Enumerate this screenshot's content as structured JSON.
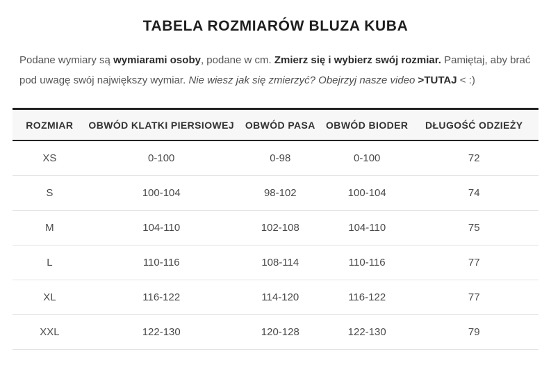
{
  "page": {
    "title": "TABELA ROZMIARÓW BLUZA KUBA",
    "intro": {
      "seg1": "Podane wymiary są ",
      "seg2": "wymiarami osoby",
      "seg3": ", podane w cm. ",
      "seg4": "Zmierz się i wybierz swój rozmiar.",
      "seg5": " Pamiętaj, aby brać pod uwagę swój największy wymiar. ",
      "seg6": "Nie wiesz jak się zmierzyć? Obejrzyj nasze video",
      "seg7": " >",
      "seg8": "TUTAJ",
      "seg9": " < :)"
    }
  },
  "table": {
    "headers": [
      "ROZMIAR",
      "OBWÓD KLATKI PIERSIOWEJ",
      "OBWÓD PASA",
      "OBWÓD BIODER",
      "DŁUGOŚĆ ODZIEŻY"
    ],
    "unit": "cm",
    "rows": [
      {
        "size": "XS",
        "chest": "0-100",
        "waist": "0-98",
        "hips": "0-100",
        "length": "72"
      },
      {
        "size": "S",
        "chest": "100-104",
        "waist": "98-102",
        "hips": "100-104",
        "length": "74"
      },
      {
        "size": "M",
        "chest": "104-110",
        "waist": "102-108",
        "hips": "104-110",
        "length": "75"
      },
      {
        "size": "L",
        "chest": "110-116",
        "waist": "108-114",
        "hips": "110-116",
        "length": "77"
      },
      {
        "size": "XL",
        "chest": "116-122",
        "waist": "114-120",
        "hips": "116-122",
        "length": "77"
      },
      {
        "size": "XXL",
        "chest": "122-130",
        "waist": "120-128",
        "hips": "122-130",
        "length": "79"
      }
    ]
  },
  "colors": {
    "header_border": "#232323",
    "header_background": "#f7f7f7",
    "row_separator": "#e3e3e3",
    "title_text": "#1e1e1e",
    "body_text": "#555555"
  }
}
